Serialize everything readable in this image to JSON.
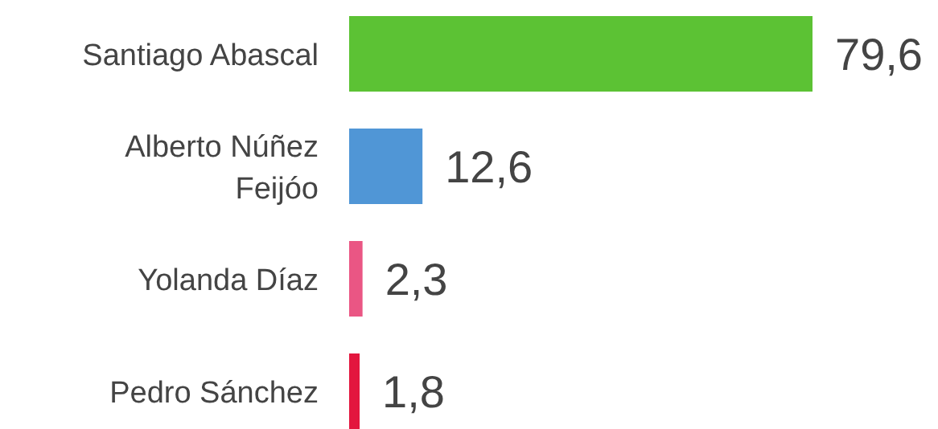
{
  "chart_data": {
    "type": "bar",
    "orientation": "horizontal",
    "categories": [
      "Santiago Abascal",
      "Alberto Núñez Feijóo",
      "Yolanda Díaz",
      "Pedro Sánchez"
    ],
    "values": [
      79.6,
      12.6,
      2.3,
      1.8
    ],
    "colors": [
      "#5cc234",
      "#5096d6",
      "#ea5684",
      "#e3163e"
    ],
    "value_labels": [
      "79,6",
      "12,6",
      "2,3",
      "1,8"
    ]
  }
}
